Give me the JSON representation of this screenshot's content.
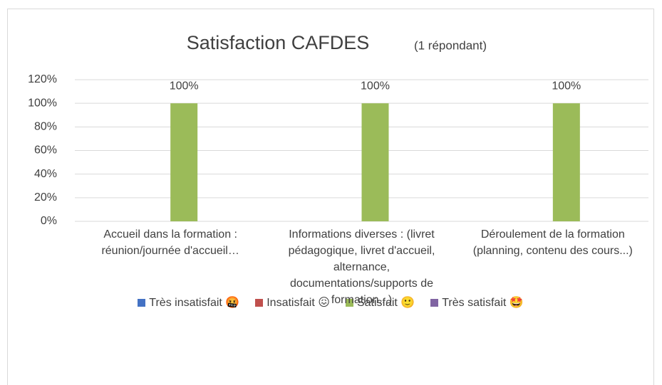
{
  "chart_data": {
    "type": "bar",
    "title": "Satisfaction CAFDES",
    "subtitle": "(1 répondant)",
    "categories": [
      "Accueil dans la formation : réunion/journée d'accueil…",
      "Informations diverses : (livret pédagogique, livret d'accueil, alternance, documentations/supports de formation...)",
      "Déroulement de la formation (planning, contenu des cours...)"
    ],
    "series": [
      {
        "name": "Très insatisfait 🤬",
        "color": "#4472c4",
        "values": [
          0,
          0,
          0
        ]
      },
      {
        "name": "Insatisfait 😖",
        "color": "#c0504d",
        "values": [
          0,
          0,
          0
        ]
      },
      {
        "name": "Satisfait 🙂",
        "color": "#9bbb59",
        "values": [
          100,
          100,
          100
        ],
        "value_labels": [
          "100%",
          "100%",
          "100%"
        ]
      },
      {
        "name": "Très satisfait 🤩",
        "color": "#8064a2",
        "values": [
          0,
          0,
          0
        ]
      }
    ],
    "ylim": [
      0,
      120
    ],
    "yticks": [
      {
        "value": 0,
        "label": "0%"
      },
      {
        "value": 20,
        "label": "20%"
      },
      {
        "value": 40,
        "label": "40%"
      },
      {
        "value": 60,
        "label": "60%"
      },
      {
        "value": 80,
        "label": "80%"
      },
      {
        "value": 100,
        "label": "100%"
      },
      {
        "value": 120,
        "label": "120%"
      }
    ],
    "grid": true,
    "legend": "bottom"
  }
}
